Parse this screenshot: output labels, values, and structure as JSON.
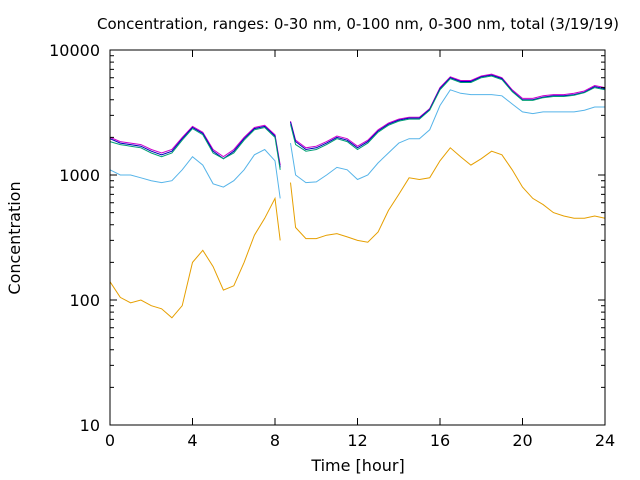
{
  "chart_data": {
    "type": "line",
    "title": "Concentration, ranges: 0-30 nm, 0-100 nm, 0-300 nm, total (3/19/19)",
    "xlabel": "Time [hour]",
    "ylabel": "Concentration",
    "xlim": [
      0,
      24
    ],
    "ylim": [
      10,
      10000
    ],
    "yscale": "log",
    "grid": false,
    "x_ticks": [
      "0",
      "4",
      "8",
      "12",
      "16",
      "20",
      "24"
    ],
    "y_ticks": [
      "10",
      "100",
      "1000",
      "10000"
    ],
    "gap": [
      8.3,
      8.7
    ],
    "x": [
      0,
      0.5,
      1,
      1.5,
      2,
      2.5,
      3,
      3.5,
      4,
      4.5,
      5,
      5.5,
      6,
      6.5,
      7,
      7.5,
      8,
      8.25,
      8.75,
      9,
      9.5,
      10,
      10.5,
      11,
      11.5,
      12,
      12.5,
      13,
      13.5,
      14,
      14.5,
      15,
      15.5,
      16,
      16.5,
      17,
      17.5,
      18,
      18.5,
      19,
      19.5,
      20,
      20.5,
      21,
      21.5,
      22,
      22.5,
      23,
      23.5,
      24
    ],
    "series": [
      {
        "color": "#cc00cc",
        "values": [
          2000,
          1850,
          1800,
          1750,
          1600,
          1500,
          1600,
          2000,
          2450,
          2200,
          1600,
          1400,
          1600,
          2000,
          2400,
          2500,
          2100,
          1200,
          2700,
          1900,
          1650,
          1700,
          1850,
          2050,
          1950,
          1700,
          1900,
          2300,
          2600,
          2800,
          2900,
          2900,
          3400,
          5000,
          6100,
          5700,
          5700,
          6200,
          6400,
          6000,
          4800,
          4100,
          4100,
          4300,
          4400,
          4400,
          4500,
          4700,
          5200,
          5000
        ]
      },
      {
        "color": "#0000bb",
        "values": [
          1950,
          1800,
          1750,
          1700,
          1550,
          1450,
          1550,
          1950,
          2400,
          2150,
          1550,
          1350,
          1550,
          1950,
          2350,
          2450,
          2050,
          1150,
          2650,
          1850,
          1600,
          1650,
          1800,
          2000,
          1900,
          1650,
          1850,
          2250,
          2550,
          2750,
          2850,
          2850,
          3350,
          4900,
          6000,
          5600,
          5600,
          6100,
          6300,
          5900,
          4700,
          4000,
          4000,
          4200,
          4300,
          4300,
          4400,
          4600,
          5100,
          4900
        ]
      },
      {
        "color": "#009e73",
        "values": [
          1850,
          1750,
          1700,
          1650,
          1500,
          1400,
          1500,
          1900,
          2350,
          2100,
          1500,
          1350,
          1500,
          1900,
          2300,
          2400,
          2000,
          1100,
          2550,
          1750,
          1550,
          1600,
          1750,
          1950,
          1850,
          1600,
          1800,
          2200,
          2500,
          2700,
          2800,
          2800,
          3300,
          4800,
          5900,
          5500,
          5500,
          6000,
          6200,
          5800,
          4650,
          3950,
          3950,
          4150,
          4250,
          4250,
          4350,
          4550,
          5000,
          4800
        ]
      },
      {
        "color": "#56b4e9",
        "values": [
          1100,
          1000,
          1000,
          950,
          900,
          870,
          900,
          1100,
          1400,
          1200,
          850,
          800,
          900,
          1100,
          1450,
          1600,
          1300,
          650,
          1800,
          1000,
          870,
          880,
          1000,
          1150,
          1100,
          920,
          1000,
          1250,
          1500,
          1800,
          1950,
          1950,
          2300,
          3600,
          4800,
          4500,
          4400,
          4400,
          4400,
          4300,
          3700,
          3200,
          3100,
          3200,
          3200,
          3200,
          3200,
          3300,
          3500,
          3500
        ]
      },
      {
        "color": "#e69f00",
        "values": [
          140,
          105,
          95,
          100,
          90,
          85,
          72,
          90,
          200,
          250,
          185,
          120,
          130,
          200,
          330,
          450,
          650,
          300,
          870,
          380,
          310,
          310,
          330,
          340,
          320,
          300,
          290,
          350,
          520,
          700,
          950,
          920,
          950,
          1300,
          1650,
          1400,
          1200,
          1350,
          1550,
          1450,
          1100,
          800,
          650,
          580,
          500,
          470,
          450,
          450,
          470,
          450
        ]
      }
    ]
  }
}
